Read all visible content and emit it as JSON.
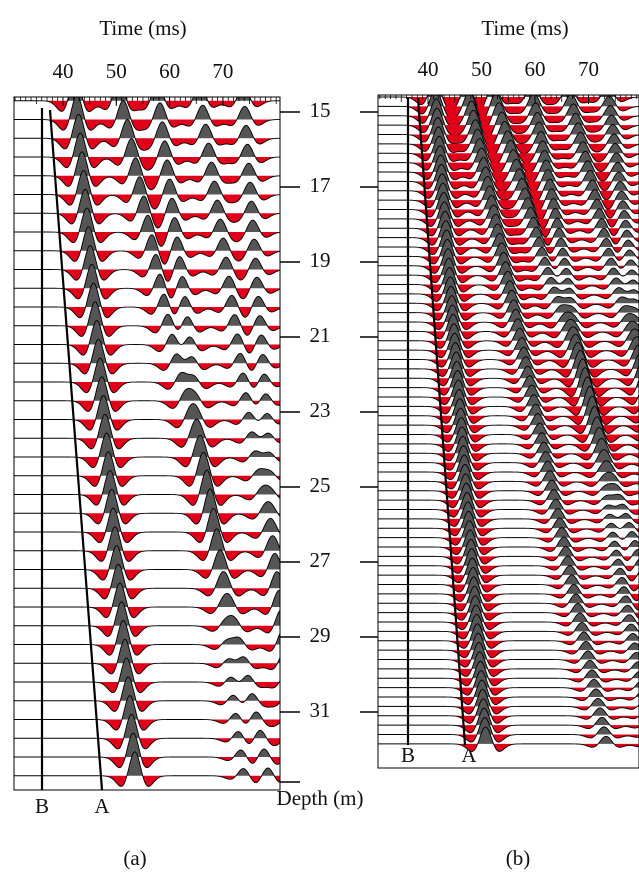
{
  "panels": [
    {
      "x_title": "Time (ms)",
      "xticks": [
        40,
        50,
        60,
        70
      ],
      "markers": [
        "B",
        "A"
      ],
      "caption": "(a)"
    },
    {
      "x_title": "Time (ms)",
      "xticks": [
        40,
        50,
        60,
        70
      ],
      "markers": [
        "B",
        "A"
      ],
      "caption": "(b)"
    }
  ],
  "depth_axis": {
    "title": "Depth (m)",
    "ticks": [
      15,
      17,
      19,
      21,
      23,
      25,
      27,
      29,
      31
    ]
  }
}
